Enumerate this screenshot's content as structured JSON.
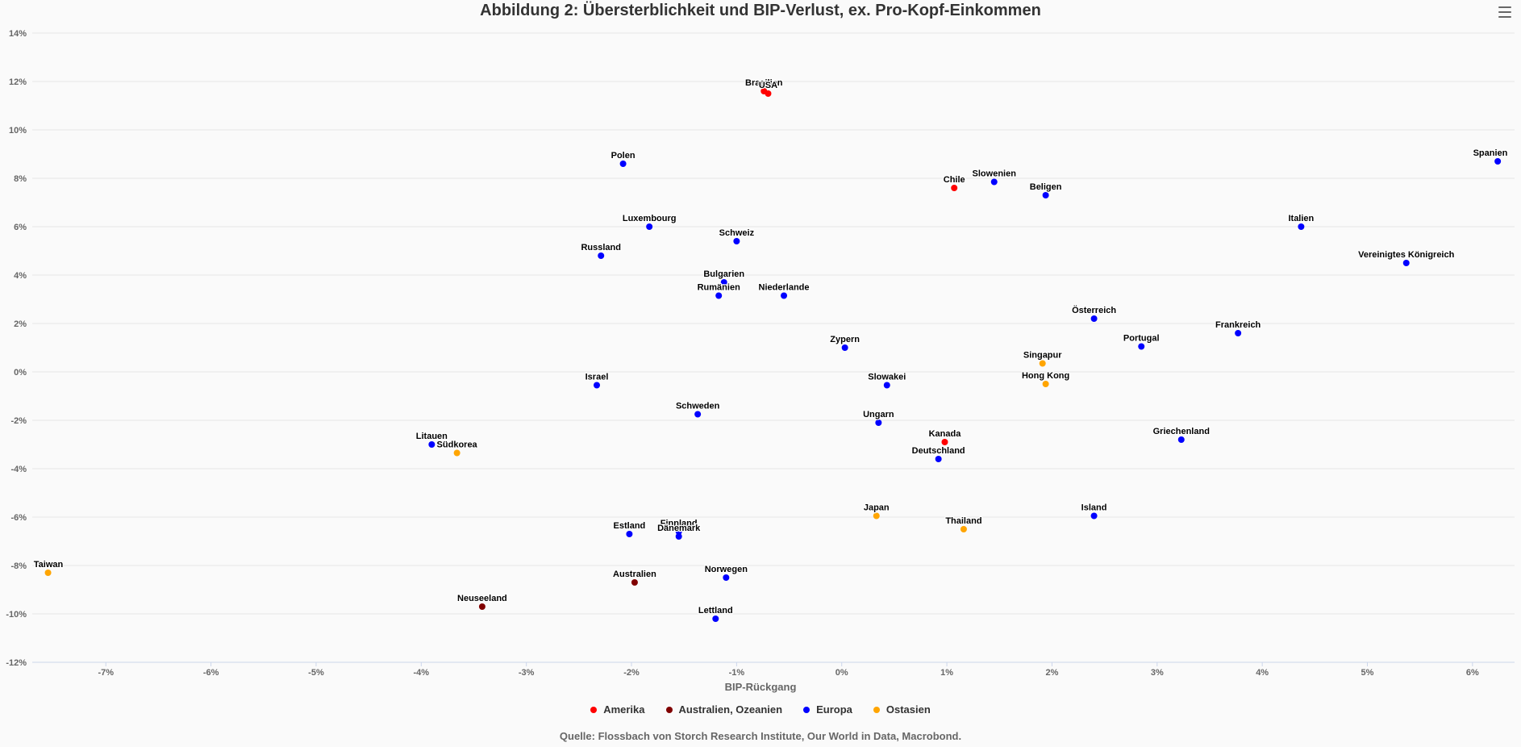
{
  "colors": {
    "Amerika": "#ff0000",
    "Australien, Ozeanien": "#800000",
    "Europa": "#0000ff",
    "Ostasien": "#ffa500"
  },
  "chart_data": {
    "type": "scatter",
    "title": "Abbildung 2: Übersterblichkeit und BIP-Verlust, ex. Pro-Kopf-Einkommen",
    "xlabel": "BIP-Rückgang",
    "ylabel": "",
    "xlim": [
      -7.7,
      6.4
    ],
    "ylim": [
      -12,
      14
    ],
    "x_ticks": [
      "-7%",
      "-6%",
      "-5%",
      "-4%",
      "-3%",
      "-2%",
      "-1%",
      "0%",
      "1%",
      "2%",
      "3%",
      "4%",
      "5%",
      "6%"
    ],
    "y_ticks": [
      "14%",
      "12%",
      "10%",
      "8%",
      "6%",
      "4%",
      "2%",
      "0%",
      "-2%",
      "-4%",
      "-6%",
      "-8%",
      "-10%",
      "-12%"
    ],
    "legend": {
      "placement": "bottom",
      "entries": [
        "Amerika",
        "Australien, Ozeanien",
        "Europa",
        "Ostasien"
      ]
    },
    "source": "Quelle: Flossbach von Storch Research Institute, Our World in Data, Macrobond.",
    "points": [
      {
        "label": "Brasilien",
        "x": -0.74,
        "y": 11.6,
        "group": "Amerika"
      },
      {
        "label": "USA",
        "x": -0.7,
        "y": 11.5,
        "group": "Amerika"
      },
      {
        "label": "Chile",
        "x": 1.07,
        "y": 7.6,
        "group": "Amerika"
      },
      {
        "label": "Kanada",
        "x": 0.98,
        "y": -2.9,
        "group": "Amerika"
      },
      {
        "label": "Australien",
        "x": -1.97,
        "y": -8.7,
        "group": "Australien, Ozeanien"
      },
      {
        "label": "Neuseeland",
        "x": -3.42,
        "y": -9.7,
        "group": "Australien, Ozeanien"
      },
      {
        "label": "Polen",
        "x": -2.08,
        "y": 8.6,
        "group": "Europa"
      },
      {
        "label": "Slowenien",
        "x": 1.45,
        "y": 7.85,
        "group": "Europa"
      },
      {
        "label": "Beligen",
        "x": 1.94,
        "y": 7.3,
        "group": "Europa"
      },
      {
        "label": "Spanien",
        "x": 6.24,
        "y": 8.7,
        "group": "Europa"
      },
      {
        "label": "Luxembourg",
        "x": -1.83,
        "y": 6.0,
        "group": "Europa"
      },
      {
        "label": "Schweiz",
        "x": -1.0,
        "y": 5.4,
        "group": "Europa"
      },
      {
        "label": "Italien",
        "x": 4.37,
        "y": 6.0,
        "group": "Europa"
      },
      {
        "label": "Russland",
        "x": -2.29,
        "y": 4.8,
        "group": "Europa"
      },
      {
        "label": "Vereinigtes Königreich",
        "x": 5.37,
        "y": 4.5,
        "group": "Europa"
      },
      {
        "label": "Bulgarien",
        "x": -1.12,
        "y": 3.7,
        "group": "Europa"
      },
      {
        "label": "Rumänien",
        "x": -1.17,
        "y": 3.15,
        "group": "Europa"
      },
      {
        "label": "Niederlande",
        "x": -0.55,
        "y": 3.15,
        "group": "Europa"
      },
      {
        "label": "Österreich",
        "x": 2.4,
        "y": 2.2,
        "group": "Europa"
      },
      {
        "label": "Frankreich",
        "x": 3.77,
        "y": 1.6,
        "group": "Europa"
      },
      {
        "label": "Portugal",
        "x": 2.85,
        "y": 1.05,
        "group": "Europa"
      },
      {
        "label": "Zypern",
        "x": 0.03,
        "y": 1.0,
        "group": "Europa"
      },
      {
        "label": "Israel",
        "x": -2.33,
        "y": -0.55,
        "group": "Europa"
      },
      {
        "label": "Slowakei",
        "x": 0.43,
        "y": -0.55,
        "group": "Europa"
      },
      {
        "label": "Schweden",
        "x": -1.37,
        "y": -1.75,
        "group": "Europa"
      },
      {
        "label": "Ungarn",
        "x": 0.35,
        "y": -2.1,
        "group": "Europa"
      },
      {
        "label": "Griechenland",
        "x": 3.23,
        "y": -2.8,
        "group": "Europa"
      },
      {
        "label": "Litauen",
        "x": -3.9,
        "y": -3.0,
        "group": "Europa"
      },
      {
        "label": "Deutschland",
        "x": 0.92,
        "y": -3.6,
        "group": "Europa"
      },
      {
        "label": "Island",
        "x": 2.4,
        "y": -5.95,
        "group": "Europa"
      },
      {
        "label": "Finnland",
        "x": -1.55,
        "y": -6.6,
        "group": "Europa"
      },
      {
        "label": "Estland",
        "x": -2.02,
        "y": -6.7,
        "group": "Europa"
      },
      {
        "label": "Dänemark",
        "x": -1.55,
        "y": -6.8,
        "group": "Europa"
      },
      {
        "label": "Norwegen",
        "x": -1.1,
        "y": -8.5,
        "group": "Europa"
      },
      {
        "label": "Lettland",
        "x": -1.2,
        "y": -10.2,
        "group": "Europa"
      },
      {
        "label": "Singapur",
        "x": 1.91,
        "y": 0.35,
        "group": "Ostasien"
      },
      {
        "label": "Hong Kong",
        "x": 1.94,
        "y": -0.5,
        "group": "Ostasien"
      },
      {
        "label": "Südkorea",
        "x": -3.66,
        "y": -3.35,
        "group": "Ostasien"
      },
      {
        "label": "Japan",
        "x": 0.33,
        "y": -5.95,
        "group": "Ostasien"
      },
      {
        "label": "Thailand",
        "x": 1.16,
        "y": -6.5,
        "group": "Ostasien"
      },
      {
        "label": "Taiwan",
        "x": -7.55,
        "y": -8.3,
        "group": "Ostasien"
      }
    ]
  }
}
